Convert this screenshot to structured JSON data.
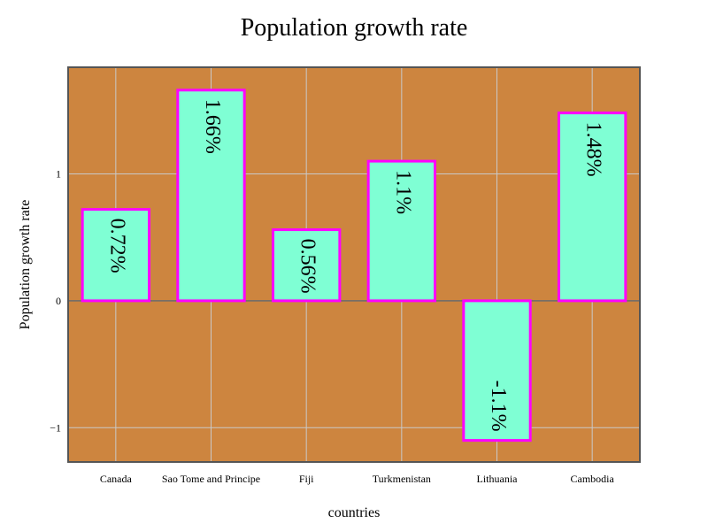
{
  "chart_data": {
    "type": "bar",
    "title": "Population growth rate",
    "xlabel": "countries",
    "ylabel": "Population growth rate",
    "categories": [
      "Canada",
      "Sao Tome and Principe",
      "Fiji",
      "Turkmenistan",
      "Lithuania",
      "Cambodia"
    ],
    "values": [
      0.72,
      1.66,
      0.56,
      1.1,
      -1.1,
      1.48
    ],
    "data_labels": [
      "0.72%",
      "1.66%",
      "0.56%",
      "1.1%",
      "-1.1%",
      "1.48%"
    ],
    "yticks": [
      -1,
      0,
      1
    ],
    "ylim": [
      -1.27,
      1.84
    ],
    "grid": true,
    "colors": {
      "plot_background": "#cd853f",
      "bar_fill": "#7fffd4",
      "bar_stroke": "#ff00ff",
      "grid": "#c9c9c9",
      "axis_frame": "#555555",
      "zero_line": "#6b6b6b"
    }
  }
}
